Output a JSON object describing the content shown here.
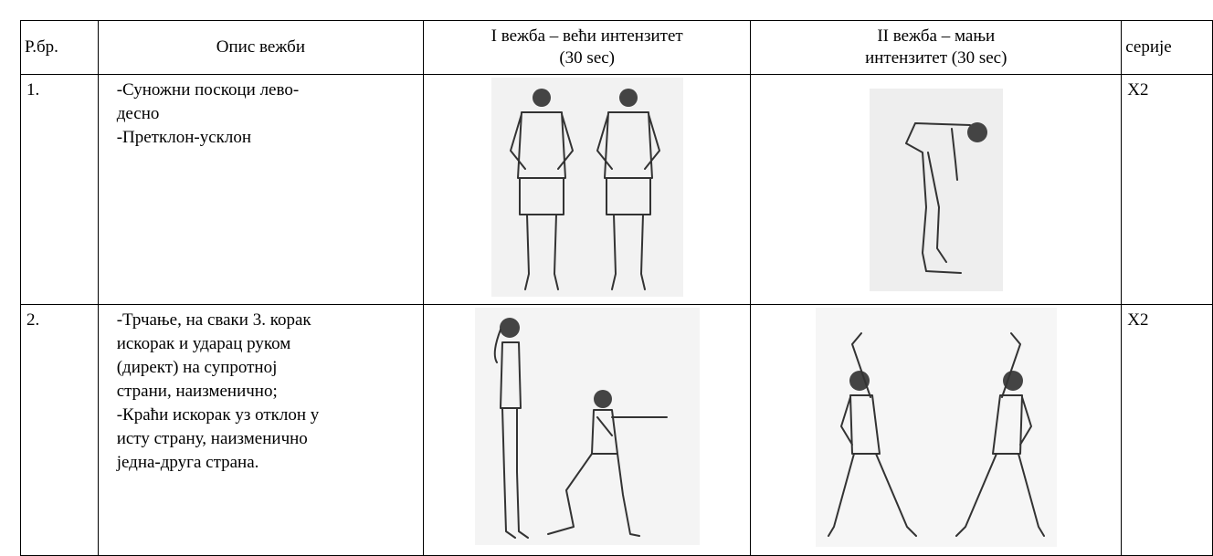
{
  "table": {
    "header": [
      "Р.бр.",
      "Опис вежби",
      [
        "I вежба – већи интензитет",
        "(30 sec)"
      ],
      [
        "II вежба – мањи",
        "интензитет (30 sec)"
      ],
      "серије"
    ],
    "rows": [
      {
        "number": "1.",
        "description": [
          "-Суножни поскоци лево-",
          "десно",
          "-Претклон-усклон"
        ],
        "series": "X2"
      },
      {
        "number": "2.",
        "description": [
          "-Трчање, на сваки 3. корак",
          "искорак и ударац руком",
          "(директ) на супротној",
          "страни, наизменично;",
          "-Краћи искорак уз отклон у",
          "исту страну, наизменично",
          "једна-друга страна."
        ],
        "series": "X2"
      }
    ]
  }
}
